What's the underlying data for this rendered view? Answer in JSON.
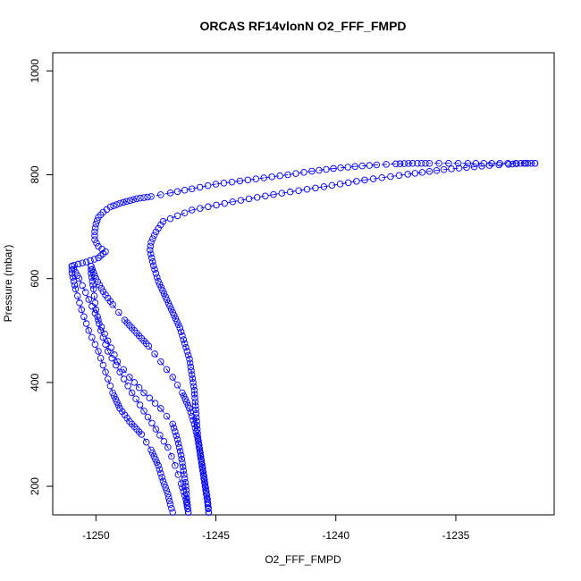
{
  "chart_data": {
    "type": "scatter",
    "title": "ORCAS RF14vlonN O2_FFF_FMPD",
    "xlabel": "O2_FFF_FMPD",
    "ylabel": "Pressure (mbar)",
    "xlim": [
      -1251.8,
      -1230.9
    ],
    "ylim": [
      1035,
      145
    ],
    "y_reversed": true,
    "x_ticks": [
      -1250,
      -1245,
      -1240,
      -1235
    ],
    "y_ticks": [
      200,
      400,
      600,
      800,
      1000
    ],
    "grid": false,
    "legend": "none",
    "marker": "open-circle",
    "connect": "dashed",
    "color": "#0000ff",
    "series": [
      {
        "values": [
          [
            -1246.8,
            150
          ],
          [
            -1246.9,
            165
          ],
          [
            -1247.0,
            185
          ],
          [
            -1247.2,
            210
          ],
          [
            -1247.4,
            240
          ],
          [
            -1247.7,
            270
          ],
          [
            -1248.1,
            300
          ],
          [
            -1248.6,
            325
          ],
          [
            -1249.0,
            350
          ],
          [
            -1249.3,
            380
          ],
          [
            -1249.6,
            420
          ],
          [
            -1249.9,
            460
          ],
          [
            -1250.3,
            500
          ],
          [
            -1250.6,
            540
          ],
          [
            -1250.85,
            580
          ],
          [
            -1251.0,
            610
          ],
          [
            -1251.0,
            624
          ]
        ]
      },
      {
        "values": [
          [
            -1251.0,
            624
          ],
          [
            -1250.7,
            600
          ],
          [
            -1250.3,
            560
          ],
          [
            -1249.9,
            520
          ],
          [
            -1249.5,
            480
          ],
          [
            -1249.1,
            440
          ],
          [
            -1248.6,
            410
          ],
          [
            -1248.0,
            380
          ],
          [
            -1247.3,
            350
          ],
          [
            -1246.8,
            320
          ],
          [
            -1246.6,
            290
          ],
          [
            -1246.45,
            260
          ],
          [
            -1246.35,
            230
          ],
          [
            -1246.25,
            200
          ],
          [
            -1246.2,
            170
          ],
          [
            -1246.15,
            150
          ]
        ]
      },
      {
        "values": [
          [
            -1246.15,
            150
          ],
          [
            -1246.25,
            175
          ],
          [
            -1246.45,
            205
          ],
          [
            -1246.7,
            240
          ],
          [
            -1247.0,
            275
          ],
          [
            -1247.5,
            310
          ],
          [
            -1248.0,
            345
          ],
          [
            -1248.5,
            380
          ],
          [
            -1249.0,
            420
          ],
          [
            -1249.5,
            460
          ],
          [
            -1249.8,
            500
          ],
          [
            -1250.0,
            540
          ],
          [
            -1250.1,
            580
          ],
          [
            -1250.2,
            610
          ],
          [
            -1250.2,
            624
          ]
        ]
      },
      {
        "values": [
          [
            -1250.2,
            624
          ],
          [
            -1250.0,
            600
          ],
          [
            -1249.7,
            575
          ],
          [
            -1249.3,
            550
          ],
          [
            -1248.8,
            520
          ],
          [
            -1248.3,
            495
          ],
          [
            -1247.8,
            470
          ],
          [
            -1247.3,
            440
          ],
          [
            -1246.8,
            410
          ],
          [
            -1246.4,
            380
          ],
          [
            -1246.1,
            350
          ],
          [
            -1245.9,
            320
          ],
          [
            -1245.75,
            290
          ],
          [
            -1245.65,
            260
          ],
          [
            -1245.55,
            230
          ],
          [
            -1245.45,
            200
          ],
          [
            -1245.35,
            170
          ],
          [
            -1245.3,
            150
          ]
        ]
      },
      {
        "values": [
          [
            -1245.3,
            150
          ],
          [
            -1245.35,
            175
          ],
          [
            -1245.45,
            205
          ],
          [
            -1245.55,
            235
          ],
          [
            -1245.65,
            265
          ],
          [
            -1245.75,
            295
          ],
          [
            -1245.8,
            325
          ],
          [
            -1245.85,
            355
          ],
          [
            -1245.9,
            385
          ],
          [
            -1246.0,
            415
          ],
          [
            -1246.1,
            445
          ],
          [
            -1246.3,
            475
          ],
          [
            -1246.5,
            505
          ],
          [
            -1246.8,
            535
          ],
          [
            -1247.1,
            565
          ],
          [
            -1247.4,
            595
          ],
          [
            -1247.6,
            625
          ],
          [
            -1247.75,
            655
          ],
          [
            -1247.7,
            670
          ],
          [
            -1247.5,
            690
          ],
          [
            -1247.2,
            710
          ],
          [
            -1246.0,
            732
          ],
          [
            -1244.3,
            748
          ],
          [
            -1242.6,
            762
          ],
          [
            -1240.5,
            777
          ],
          [
            -1238.8,
            790
          ],
          [
            -1237.0,
            801
          ],
          [
            -1235.5,
            810
          ],
          [
            -1233.6,
            818
          ],
          [
            -1232.8,
            820
          ],
          [
            -1232.3,
            822
          ],
          [
            -1231.7,
            822
          ]
        ]
      },
      {
        "values": [
          [
            -1231.7,
            822
          ],
          [
            -1232.5,
            822
          ],
          [
            -1233.5,
            822
          ],
          [
            -1234.5,
            822
          ],
          [
            -1235.3,
            822
          ],
          [
            -1236.1,
            822
          ],
          [
            -1236.6,
            822
          ],
          [
            -1236.8,
            822
          ],
          [
            -1237.5,
            821
          ],
          [
            -1238.3,
            819
          ],
          [
            -1239.2,
            816
          ],
          [
            -1240.1,
            812
          ],
          [
            -1241.0,
            807
          ],
          [
            -1242.0,
            800
          ],
          [
            -1243.0,
            794
          ],
          [
            -1244.0,
            788
          ],
          [
            -1245.0,
            782
          ],
          [
            -1246.0,
            773
          ],
          [
            -1246.9,
            765
          ],
          [
            -1247.7,
            758
          ],
          [
            -1248.3,
            754
          ],
          [
            -1249.0,
            745
          ],
          [
            -1249.4,
            738
          ],
          [
            -1249.7,
            728
          ],
          [
            -1249.9,
            718
          ],
          [
            -1250.0,
            705
          ],
          [
            -1250.05,
            690
          ],
          [
            -1250.05,
            675
          ],
          [
            -1249.9,
            662
          ],
          [
            -1249.6,
            652
          ],
          [
            -1249.9,
            640
          ],
          [
            -1250.4,
            632
          ],
          [
            -1250.9,
            626
          ],
          [
            -1251.0,
            624
          ]
        ]
      }
    ]
  }
}
